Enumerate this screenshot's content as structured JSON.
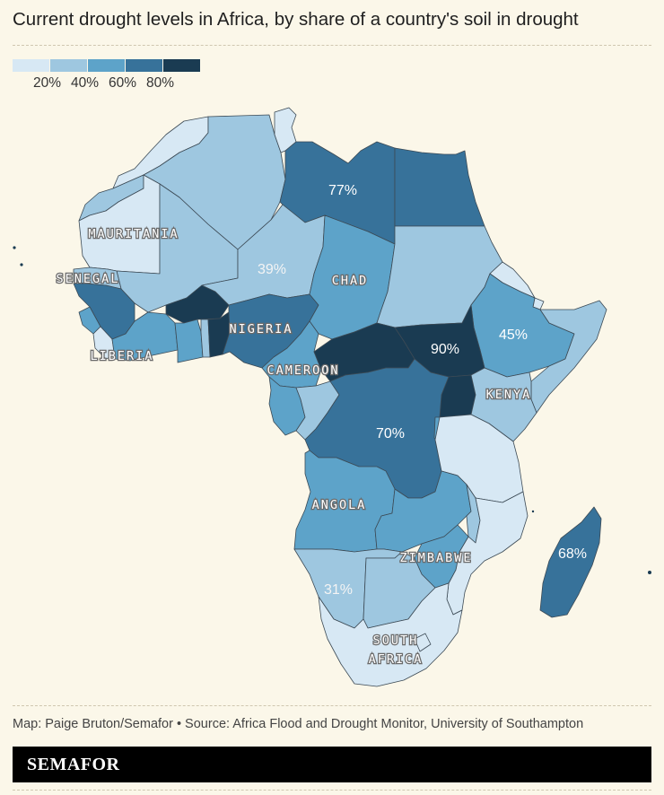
{
  "title": "Current drought levels in Africa, by share of a country's soil in drought",
  "legend": {
    "colors": [
      "#d7e8f4",
      "#9ec7e0",
      "#5da3c9",
      "#37729a",
      "#1a3b52"
    ],
    "labels": [
      "20%",
      "40%",
      "60%",
      "80%"
    ]
  },
  "country_labels": {
    "mauritania": "MAURITANIA",
    "senegal": "SENEGAL",
    "liberia": "LIBERIA",
    "nigeria": "NIGERIA",
    "chad": "CHAD",
    "cameroon": "CAMEROON",
    "kenya": "KENYA",
    "angola": "ANGOLA",
    "zimbabwe": "ZIMBABWE",
    "south_africa_1": "SOUTH",
    "south_africa_2": "AFRICA"
  },
  "value_labels": {
    "libya": "77%",
    "niger": "39%",
    "sudan_ssudan": "90%",
    "ethiopia": "45%",
    "drc": "70%",
    "madagascar": "68%",
    "namibia": "31%"
  },
  "source": "Map: Paige Bruton/Semafor • Source: Africa Flood and Drought Monitor, University of Southampton",
  "brand": "SEMAFOR"
}
